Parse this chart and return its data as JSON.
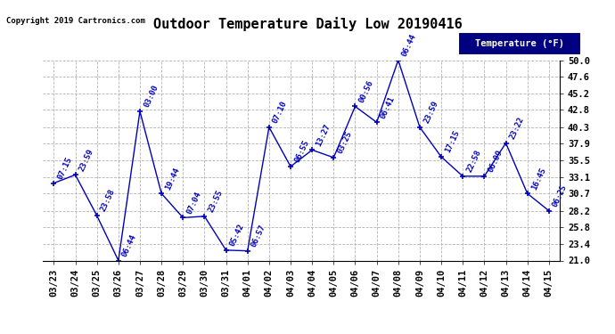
{
  "title": "Outdoor Temperature Daily Low 20190416",
  "copyright": "Copyright 2019 Cartronics.com",
  "legend_label": "Temperature (°F)",
  "dates": [
    "03/23",
    "03/24",
    "03/25",
    "03/26",
    "03/27",
    "03/28",
    "03/29",
    "03/30",
    "03/31",
    "04/01",
    "04/02",
    "04/03",
    "04/04",
    "04/05",
    "04/06",
    "04/07",
    "04/08",
    "04/09",
    "04/10",
    "04/11",
    "04/12",
    "04/13",
    "04/14",
    "04/15"
  ],
  "temps": [
    32.2,
    33.4,
    27.5,
    21.0,
    42.6,
    30.7,
    27.2,
    27.4,
    22.5,
    22.4,
    40.3,
    34.6,
    37.0,
    35.9,
    43.3,
    41.0,
    50.0,
    40.3,
    36.0,
    33.2,
    33.2,
    38.0,
    30.7,
    28.2
  ],
  "time_labels": [
    "07:15",
    "23:59",
    "23:58",
    "06:44",
    "03:00",
    "19:44",
    "07:04",
    "23:55",
    "05:42",
    "06:57",
    "07:10",
    "06:55",
    "13:27",
    "03:25",
    "00:56",
    "06:41",
    "06:44",
    "23:59",
    "17:15",
    "22:58",
    "06:09",
    "23:22",
    "16:45",
    "06:25"
  ],
  "ylim": [
    21.0,
    50.0
  ],
  "yticks": [
    21.0,
    23.4,
    25.8,
    28.2,
    30.7,
    33.1,
    35.5,
    37.9,
    40.3,
    42.8,
    45.2,
    47.6,
    50.0
  ],
  "line_color": "#0000bb",
  "marker_color": "#0000bb",
  "bg_color": "#ffffff",
  "plot_bg_color": "#ffffff",
  "grid_color": "#aaaaaa",
  "title_fontsize": 11,
  "tick_fontsize": 7.5,
  "annotation_fontsize": 6.5,
  "legend_bg": "#000080",
  "legend_fg": "#ffffff"
}
